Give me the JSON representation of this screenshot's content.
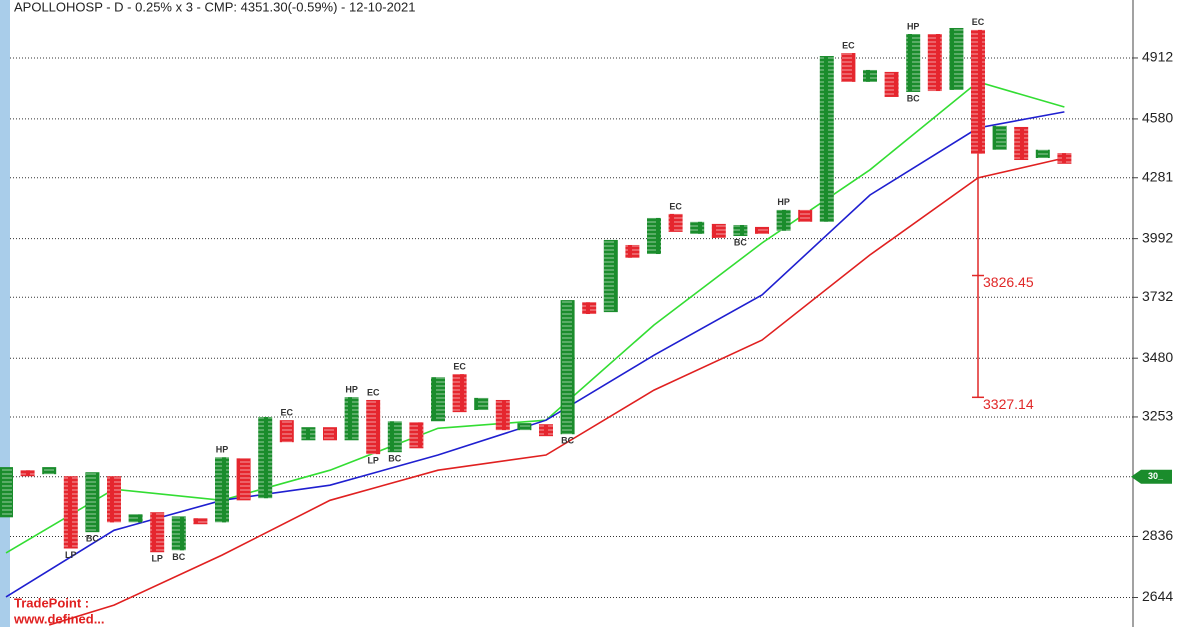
{
  "chart_data": {
    "type": "point_and_figure",
    "title": "APOLLOHOSP - D - 0.25% x 3 - CMP: 4351.30(-0.59%) - 12-10-2021",
    "log": true,
    "grid": true,
    "ylim": [
      2556,
      5250
    ],
    "yticks": [
      4912,
      4580,
      4281,
      3992,
      3732,
      3480,
      3253,
      {
        "value": 3037,
        "label": "30_"
      },
      2836,
      2644
    ],
    "x_color": "#1a8c2c",
    "o_color": "#e5262e",
    "columns": [
      {
        "type": "X",
        "high": 3071,
        "low": 2899
      },
      {
        "type": "O",
        "high": 3060,
        "low": 3039
      },
      {
        "type": "X",
        "high": 3071,
        "low": 3046
      },
      {
        "type": "O",
        "high": 3039,
        "low": 2797,
        "bottom_label": "LP"
      },
      {
        "type": "X",
        "high": 3053,
        "low": 2850,
        "bottom_label": "BC"
      },
      {
        "type": "O",
        "high": 3039,
        "low": 2882
      },
      {
        "type": "X",
        "high": 2909,
        "low": 2882
      },
      {
        "type": "O",
        "high": 2916,
        "low": 2785,
        "bottom_label": "LP"
      },
      {
        "type": "X",
        "high": 2902,
        "low": 2791,
        "bottom_label": "BC"
      },
      {
        "type": "O",
        "high": 2896,
        "low": 2876
      },
      {
        "type": "X",
        "high": 3106,
        "low": 2882,
        "top_label": "HP"
      },
      {
        "type": "O",
        "high": 3102,
        "low": 2956
      },
      {
        "type": "X",
        "high": 3253,
        "low": 2963
      },
      {
        "type": "O",
        "high": 3241,
        "low": 3160,
        "top_label": "EC"
      },
      {
        "type": "X",
        "high": 3215,
        "low": 3167
      },
      {
        "type": "O",
        "high": 3215,
        "low": 3167
      },
      {
        "type": "X",
        "high": 3328,
        "low": 3167,
        "top_label": "HP"
      },
      {
        "type": "O",
        "high": 3317,
        "low": 3117,
        "top_label": "EC",
        "bottom_label": "LP"
      },
      {
        "type": "X",
        "high": 3237,
        "low": 3124,
        "bottom_label": "BC"
      },
      {
        "type": "O",
        "high": 3233,
        "low": 3138
      },
      {
        "type": "X",
        "high": 3405,
        "low": 3237
      },
      {
        "type": "O",
        "high": 3417,
        "low": 3271,
        "top_label": "EC"
      },
      {
        "type": "X",
        "high": 3325,
        "low": 3279
      },
      {
        "type": "O",
        "high": 3317,
        "low": 3204
      },
      {
        "type": "X",
        "high": 3230,
        "low": 3204
      },
      {
        "type": "O",
        "high": 3226,
        "low": 3182
      },
      {
        "type": "X",
        "high": 3720,
        "low": 3189,
        "bottom_label": "BC"
      },
      {
        "type": "O",
        "high": 3711,
        "low": 3661
      },
      {
        "type": "X",
        "high": 3986,
        "low": 3669
      },
      {
        "type": "O",
        "high": 3963,
        "low": 3905
      },
      {
        "type": "X",
        "high": 4088,
        "low": 3922
      },
      {
        "type": "O",
        "high": 4107,
        "low": 4023,
        "top_label": "EC"
      },
      {
        "type": "X",
        "high": 4070,
        "low": 4014
      },
      {
        "type": "O",
        "high": 4060,
        "low": 3995
      },
      {
        "type": "X",
        "high": 4055,
        "low": 4004,
        "bottom_label": "BC"
      },
      {
        "type": "O",
        "high": 4046,
        "low": 4014
      },
      {
        "type": "X",
        "high": 4126,
        "low": 4028,
        "top_label": "HP"
      },
      {
        "type": "O",
        "high": 4126,
        "low": 4070
      },
      {
        "type": "X",
        "high": 4923,
        "low": 4070
      },
      {
        "type": "O",
        "high": 4940,
        "low": 4779,
        "top_label": "EC"
      },
      {
        "type": "X",
        "high": 4845,
        "low": 4779
      },
      {
        "type": "O",
        "high": 4834,
        "low": 4697
      },
      {
        "type": "X",
        "high": 5049,
        "low": 4724,
        "top_label": "HP",
        "bottom_label": "BC"
      },
      {
        "type": "O",
        "high": 5049,
        "low": 4729
      },
      {
        "type": "X",
        "high": 5084,
        "low": 4735
      },
      {
        "type": "O",
        "high": 5073,
        "low": 4401,
        "top_label": "EC",
        "targets": [
          3826.45,
          3327.14
        ]
      },
      {
        "type": "X",
        "high": 4544,
        "low": 4421
      },
      {
        "type": "O",
        "high": 4538,
        "low": 4369
      },
      {
        "type": "X",
        "high": 4421,
        "low": 4379
      },
      {
        "type": "O",
        "high": 4404,
        "low": 4350
      }
    ],
    "series": [
      {
        "color": "#33dd33",
        "x": [
          0,
          5,
          10,
          15,
          20,
          25,
          30,
          35,
          40,
          45,
          49
        ],
        "values": [
          2783,
          2994,
          2956,
          3060,
          3211,
          3241,
          3615,
          3972,
          4320,
          4779,
          4643
        ]
      },
      {
        "color": "#1f1fd0",
        "x": [
          0,
          5,
          10,
          15,
          20,
          25,
          30,
          35,
          40,
          45,
          49
        ],
        "values": [
          2646,
          2856,
          2956,
          3008,
          3114,
          3241,
          3492,
          3742,
          4197,
          4533,
          4617
        ]
      },
      {
        "color": "#e02020",
        "x": [
          2,
          5,
          10,
          15,
          20,
          25,
          30,
          35,
          40,
          45,
          49
        ],
        "values": [
          2562,
          2621,
          2776,
          2956,
          3060,
          3114,
          3355,
          3553,
          3918,
          4280,
          4379
        ]
      }
    ],
    "watermark": [
      "TradePoint :",
      "www.defined..."
    ]
  }
}
